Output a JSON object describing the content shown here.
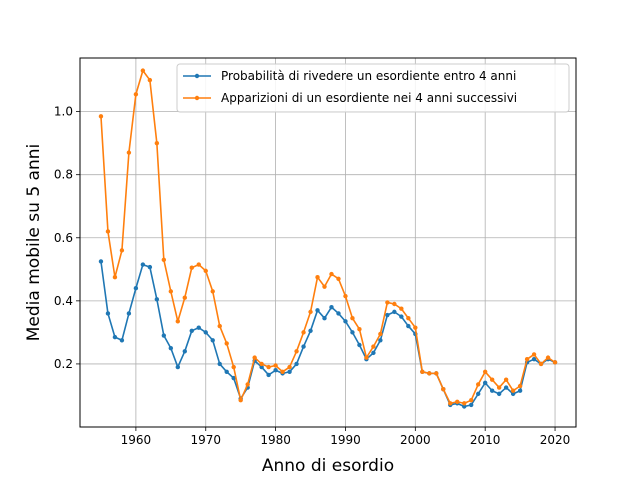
{
  "chart_data": {
    "type": "line",
    "title": "",
    "xlabel": "Anno di esordio",
    "ylabel": "Media mobile su 5 anni",
    "xlim": [
      1952,
      2023
    ],
    "ylim": [
      0.0,
      1.17
    ],
    "xticks": [
      1960,
      1970,
      1980,
      1990,
      2000,
      2010,
      2020
    ],
    "yticks": [
      0.2,
      0.4,
      0.6,
      0.8,
      1.0
    ],
    "xtick_labels": [
      "1960",
      "1970",
      "1980",
      "1990",
      "2000",
      "2010",
      "2020"
    ],
    "ytick_labels": [
      "0.2",
      "0.4",
      "0.6",
      "0.8",
      "1.0"
    ],
    "grid": true,
    "legend_position": "top-right",
    "x": [
      1955,
      1956,
      1957,
      1958,
      1959,
      1960,
      1961,
      1962,
      1963,
      1964,
      1965,
      1966,
      1967,
      1968,
      1969,
      1970,
      1971,
      1972,
      1973,
      1974,
      1975,
      1976,
      1977,
      1978,
      1979,
      1980,
      1981,
      1982,
      1983,
      1984,
      1985,
      1986,
      1987,
      1988,
      1989,
      1990,
      1991,
      1992,
      1993,
      1994,
      1995,
      1996,
      1997,
      1998,
      1999,
      2000,
      2001,
      2002,
      2003,
      2004,
      2005,
      2006,
      2007,
      2008,
      2009,
      2010,
      2011,
      2012,
      2013,
      2014,
      2015,
      2016,
      2017,
      2018,
      2019,
      2020
    ],
    "series": [
      {
        "name": "Probabilità di rivedere un esordiente entro 4 anni",
        "color": "#1f77b4",
        "values": [
          0.525,
          0.36,
          0.285,
          0.275,
          0.36,
          0.44,
          0.515,
          0.507,
          0.405,
          0.29,
          0.25,
          0.19,
          0.24,
          0.305,
          0.315,
          0.3,
          0.275,
          0.2,
          0.175,
          0.155,
          0.09,
          0.125,
          0.21,
          0.19,
          0.165,
          0.18,
          0.17,
          0.175,
          0.2,
          0.255,
          0.305,
          0.37,
          0.345,
          0.38,
          0.36,
          0.335,
          0.3,
          0.26,
          0.215,
          0.235,
          0.275,
          0.355,
          0.365,
          0.35,
          0.32,
          0.295,
          0.175,
          0.17,
          0.17,
          0.12,
          0.07,
          0.075,
          0.065,
          0.07,
          0.105,
          0.14,
          0.115,
          0.105,
          0.125,
          0.105,
          0.115,
          0.205,
          0.215,
          0.2,
          0.215,
          0.205
        ]
      },
      {
        "name": "Apparizioni di un esordiente nei 4 anni successivi",
        "color": "#ff7f0e",
        "values": [
          0.985,
          0.62,
          0.475,
          0.56,
          0.87,
          1.055,
          1.13,
          1.1,
          0.9,
          0.53,
          0.43,
          0.335,
          0.41,
          0.505,
          0.515,
          0.495,
          0.43,
          0.32,
          0.265,
          0.19,
          0.085,
          0.135,
          0.22,
          0.2,
          0.19,
          0.195,
          0.175,
          0.19,
          0.24,
          0.3,
          0.365,
          0.475,
          0.445,
          0.485,
          0.47,
          0.415,
          0.345,
          0.31,
          0.22,
          0.255,
          0.295,
          0.395,
          0.39,
          0.375,
          0.345,
          0.315,
          0.175,
          0.17,
          0.17,
          0.12,
          0.075,
          0.08,
          0.075,
          0.085,
          0.135,
          0.175,
          0.15,
          0.125,
          0.15,
          0.115,
          0.13,
          0.215,
          0.23,
          0.2,
          0.22,
          0.205
        ]
      }
    ]
  }
}
